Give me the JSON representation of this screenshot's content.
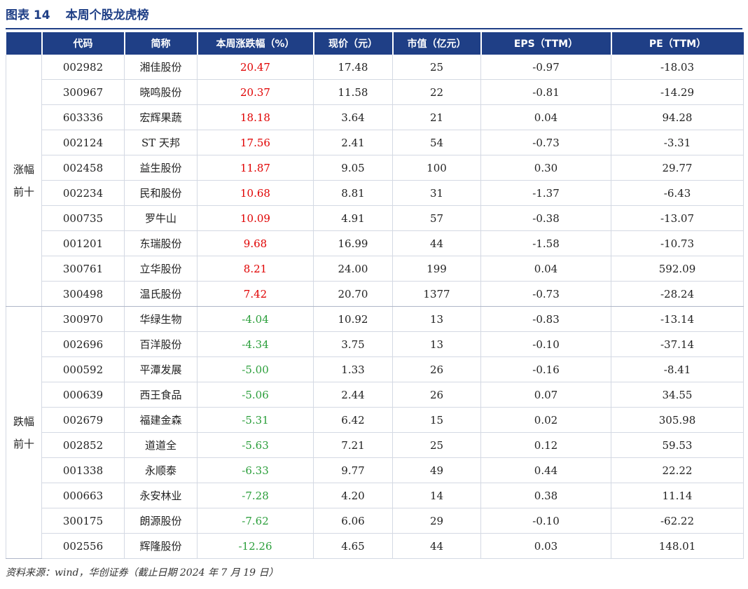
{
  "title": {
    "figure_no": "图表 14",
    "text": "本周个股龙虎榜"
  },
  "headers": [
    "代码",
    "简称",
    "本周涨跌幅（%）",
    "现价（元）",
    "市值（亿元）",
    "EPS（TTM）",
    "PE（TTM）"
  ],
  "groups": {
    "up": {
      "line1": "涨幅",
      "line2": "前十"
    },
    "down": {
      "line1": "跌幅",
      "line2": "前十"
    }
  },
  "up_rows": [
    {
      "code": "002982",
      "name": "湘佳股份",
      "change": "20.47",
      "price": "17.48",
      "mcap": "25",
      "eps": "-0.97",
      "pe": "-18.03"
    },
    {
      "code": "300967",
      "name": "晓鸣股份",
      "change": "20.37",
      "price": "11.58",
      "mcap": "22",
      "eps": "-0.81",
      "pe": "-14.29"
    },
    {
      "code": "603336",
      "name": "宏辉果蔬",
      "change": "18.18",
      "price": "3.64",
      "mcap": "21",
      "eps": "0.04",
      "pe": "94.28"
    },
    {
      "code": "002124",
      "name": "ST 天邦",
      "change": "17.56",
      "price": "2.41",
      "mcap": "54",
      "eps": "-0.73",
      "pe": "-3.31"
    },
    {
      "code": "002458",
      "name": "益生股份",
      "change": "11.87",
      "price": "9.05",
      "mcap": "100",
      "eps": "0.30",
      "pe": "29.77"
    },
    {
      "code": "002234",
      "name": "民和股份",
      "change": "10.68",
      "price": "8.81",
      "mcap": "31",
      "eps": "-1.37",
      "pe": "-6.43"
    },
    {
      "code": "000735",
      "name": "罗牛山",
      "change": "10.09",
      "price": "4.91",
      "mcap": "57",
      "eps": "-0.38",
      "pe": "-13.07"
    },
    {
      "code": "001201",
      "name": "东瑞股份",
      "change": "9.68",
      "price": "16.99",
      "mcap": "44",
      "eps": "-1.58",
      "pe": "-10.73"
    },
    {
      "code": "300761",
      "name": "立华股份",
      "change": "8.21",
      "price": "24.00",
      "mcap": "199",
      "eps": "0.04",
      "pe": "592.09"
    },
    {
      "code": "300498",
      "name": "温氏股份",
      "change": "7.42",
      "price": "20.70",
      "mcap": "1377",
      "eps": "-0.73",
      "pe": "-28.24"
    }
  ],
  "down_rows": [
    {
      "code": "300970",
      "name": "华绿生物",
      "change": "-4.04",
      "price": "10.92",
      "mcap": "13",
      "eps": "-0.83",
      "pe": "-13.14"
    },
    {
      "code": "002696",
      "name": "百洋股份",
      "change": "-4.34",
      "price": "3.75",
      "mcap": "13",
      "eps": "-0.10",
      "pe": "-37.14"
    },
    {
      "code": "000592",
      "name": "平潭发展",
      "change": "-5.00",
      "price": "1.33",
      "mcap": "26",
      "eps": "-0.16",
      "pe": "-8.41"
    },
    {
      "code": "000639",
      "name": "西王食品",
      "change": "-5.06",
      "price": "2.44",
      "mcap": "26",
      "eps": "0.07",
      "pe": "34.55"
    },
    {
      "code": "002679",
      "name": "福建金森",
      "change": "-5.31",
      "price": "6.42",
      "mcap": "15",
      "eps": "0.02",
      "pe": "305.98"
    },
    {
      "code": "002852",
      "name": "道道全",
      "change": "-5.63",
      "price": "7.21",
      "mcap": "25",
      "eps": "0.12",
      "pe": "59.53"
    },
    {
      "code": "001338",
      "name": "永顺泰",
      "change": "-6.33",
      "price": "9.77",
      "mcap": "49",
      "eps": "0.44",
      "pe": "22.22"
    },
    {
      "code": "000663",
      "name": "永安林业",
      "change": "-7.28",
      "price": "4.20",
      "mcap": "14",
      "eps": "0.38",
      "pe": "11.14"
    },
    {
      "code": "300175",
      "name": "朗源股份",
      "change": "-7.62",
      "price": "6.06",
      "mcap": "29",
      "eps": "-0.10",
      "pe": "-62.22"
    },
    {
      "code": "002556",
      "name": "辉隆股份",
      "change": "-12.26",
      "price": "4.65",
      "mcap": "44",
      "eps": "0.03",
      "pe": "148.01"
    }
  ],
  "source": "资料来源：wind，华创证券（截止日期 2024 年 7 月 19 日）",
  "colors": {
    "header_bg": "#1f3f86",
    "up": "#e00000",
    "down": "#2a9e3a"
  }
}
